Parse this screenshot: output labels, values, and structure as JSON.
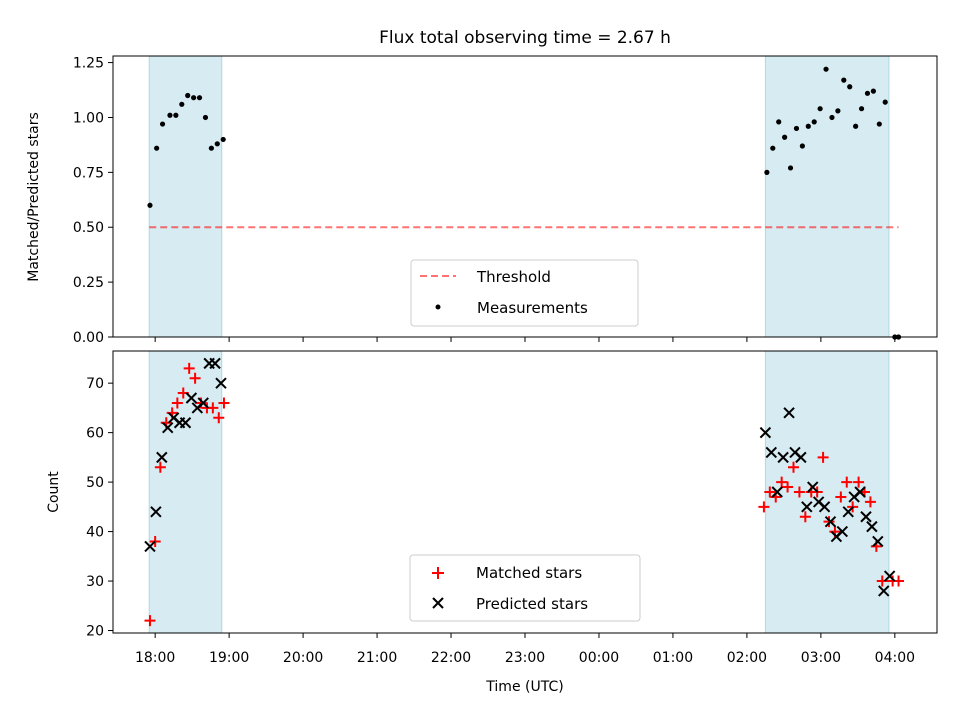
{
  "title": "Flux total observing time = 2.67 h",
  "colors": {
    "shade": "#add8e6",
    "threshold": "#ff0000",
    "measurement": "#000000",
    "matched": "#ff0000",
    "predicted": "#000000"
  },
  "chart_data": [
    {
      "type": "scatter",
      "name": "ratio",
      "ylabel": "Matched/Predicted stars",
      "xlabel": "",
      "ylim": [
        0.0,
        1.28
      ],
      "yticks": [
        "0.00",
        "0.25",
        "0.50",
        "0.75",
        "1.00",
        "1.25"
      ],
      "ytick_values": [
        0.0,
        0.25,
        0.5,
        0.75,
        1.0,
        1.25
      ],
      "threshold": 0.5,
      "threshold_x": [
        17.92,
        28.05
      ],
      "shaded_intervals": [
        [
          17.92,
          18.9
        ],
        [
          26.25,
          27.92
        ]
      ],
      "legend": {
        "position": "lower-center",
        "entries": [
          "Threshold",
          "Measurements"
        ]
      },
      "measurements": {
        "x": [
          17.93,
          18.02,
          18.1,
          18.2,
          18.28,
          18.36,
          18.44,
          18.52,
          18.6,
          18.68,
          18.76,
          18.84,
          18.92,
          26.27,
          26.35,
          26.43,
          26.51,
          26.59,
          26.67,
          26.75,
          26.83,
          26.91,
          26.99,
          27.07,
          27.15,
          27.23,
          27.31,
          27.39,
          27.47,
          27.55,
          27.63,
          27.71,
          27.79,
          27.87,
          28.0,
          28.05
        ],
        "y": [
          0.6,
          0.86,
          0.97,
          1.01,
          1.01,
          1.06,
          1.1,
          1.09,
          1.09,
          1.0,
          0.86,
          0.88,
          0.9,
          0.75,
          0.86,
          0.98,
          0.91,
          0.77,
          0.95,
          0.87,
          0.96,
          0.98,
          1.04,
          1.22,
          1.0,
          1.03,
          1.17,
          1.14,
          0.96,
          1.04,
          1.11,
          1.12,
          0.97,
          1.07,
          0.0,
          0.0
        ]
      }
    },
    {
      "type": "scatter",
      "name": "count",
      "ylabel": "Count",
      "xlabel": "Time (UTC)",
      "ylim": [
        19.5,
        76.5
      ],
      "yticks": [
        "20",
        "30",
        "40",
        "50",
        "60",
        "70"
      ],
      "ytick_values": [
        20,
        30,
        40,
        50,
        60,
        70
      ],
      "shaded_intervals": [
        [
          17.92,
          18.9
        ],
        [
          26.25,
          27.92
        ]
      ],
      "xlim": [
        17.43,
        28.57
      ],
      "xticks": [
        "18:00",
        "19:00",
        "20:00",
        "21:00",
        "22:00",
        "23:00",
        "00:00",
        "01:00",
        "02:00",
        "03:00",
        "04:00"
      ],
      "xtick_values": [
        18,
        19,
        20,
        21,
        22,
        23,
        24,
        25,
        26,
        27,
        28
      ],
      "legend": {
        "position": "lower-center",
        "entries": [
          "Matched stars",
          "Predicted stars"
        ]
      },
      "series": [
        {
          "name": "Matched stars",
          "marker": "plus",
          "x": [
            17.93,
            18.0,
            18.07,
            18.15,
            18.23,
            18.3,
            18.38,
            18.46,
            18.54,
            18.62,
            18.7,
            18.78,
            18.86,
            18.93,
            26.23,
            26.31,
            26.39,
            26.47,
            26.55,
            26.63,
            26.71,
            26.79,
            26.87,
            26.95,
            27.03,
            27.11,
            27.19,
            27.27,
            27.35,
            27.43,
            27.51,
            27.59,
            27.67,
            27.75,
            27.83,
            27.97,
            28.05
          ],
          "y": [
            22,
            38,
            53,
            62,
            64,
            66,
            68,
            73,
            71,
            66,
            65,
            65,
            63,
            66,
            45,
            48,
            47,
            50,
            49,
            53,
            48,
            43,
            48,
            48,
            55,
            42,
            40,
            47,
            50,
            45,
            50,
            48,
            46,
            37,
            30,
            30,
            30
          ]
        },
        {
          "name": "Predicted stars",
          "marker": "x",
          "x": [
            17.93,
            18.01,
            18.09,
            18.17,
            18.25,
            18.33,
            18.41,
            18.49,
            18.57,
            18.65,
            18.73,
            18.81,
            18.89,
            26.25,
            26.33,
            26.41,
            26.49,
            26.57,
            26.65,
            26.73,
            26.81,
            26.89,
            26.97,
            27.05,
            27.13,
            27.21,
            27.29,
            27.37,
            27.45,
            27.53,
            27.61,
            27.69,
            27.77,
            27.85,
            27.93
          ],
          "y": [
            37,
            44,
            55,
            61,
            63,
            62,
            62,
            67,
            65,
            66,
            74,
            74,
            70,
            60,
            56,
            48,
            55,
            64,
            56,
            55,
            45,
            49,
            46,
            45,
            42,
            39,
            40,
            44,
            47,
            48,
            43,
            41,
            38,
            28,
            31
          ]
        }
      ]
    }
  ]
}
